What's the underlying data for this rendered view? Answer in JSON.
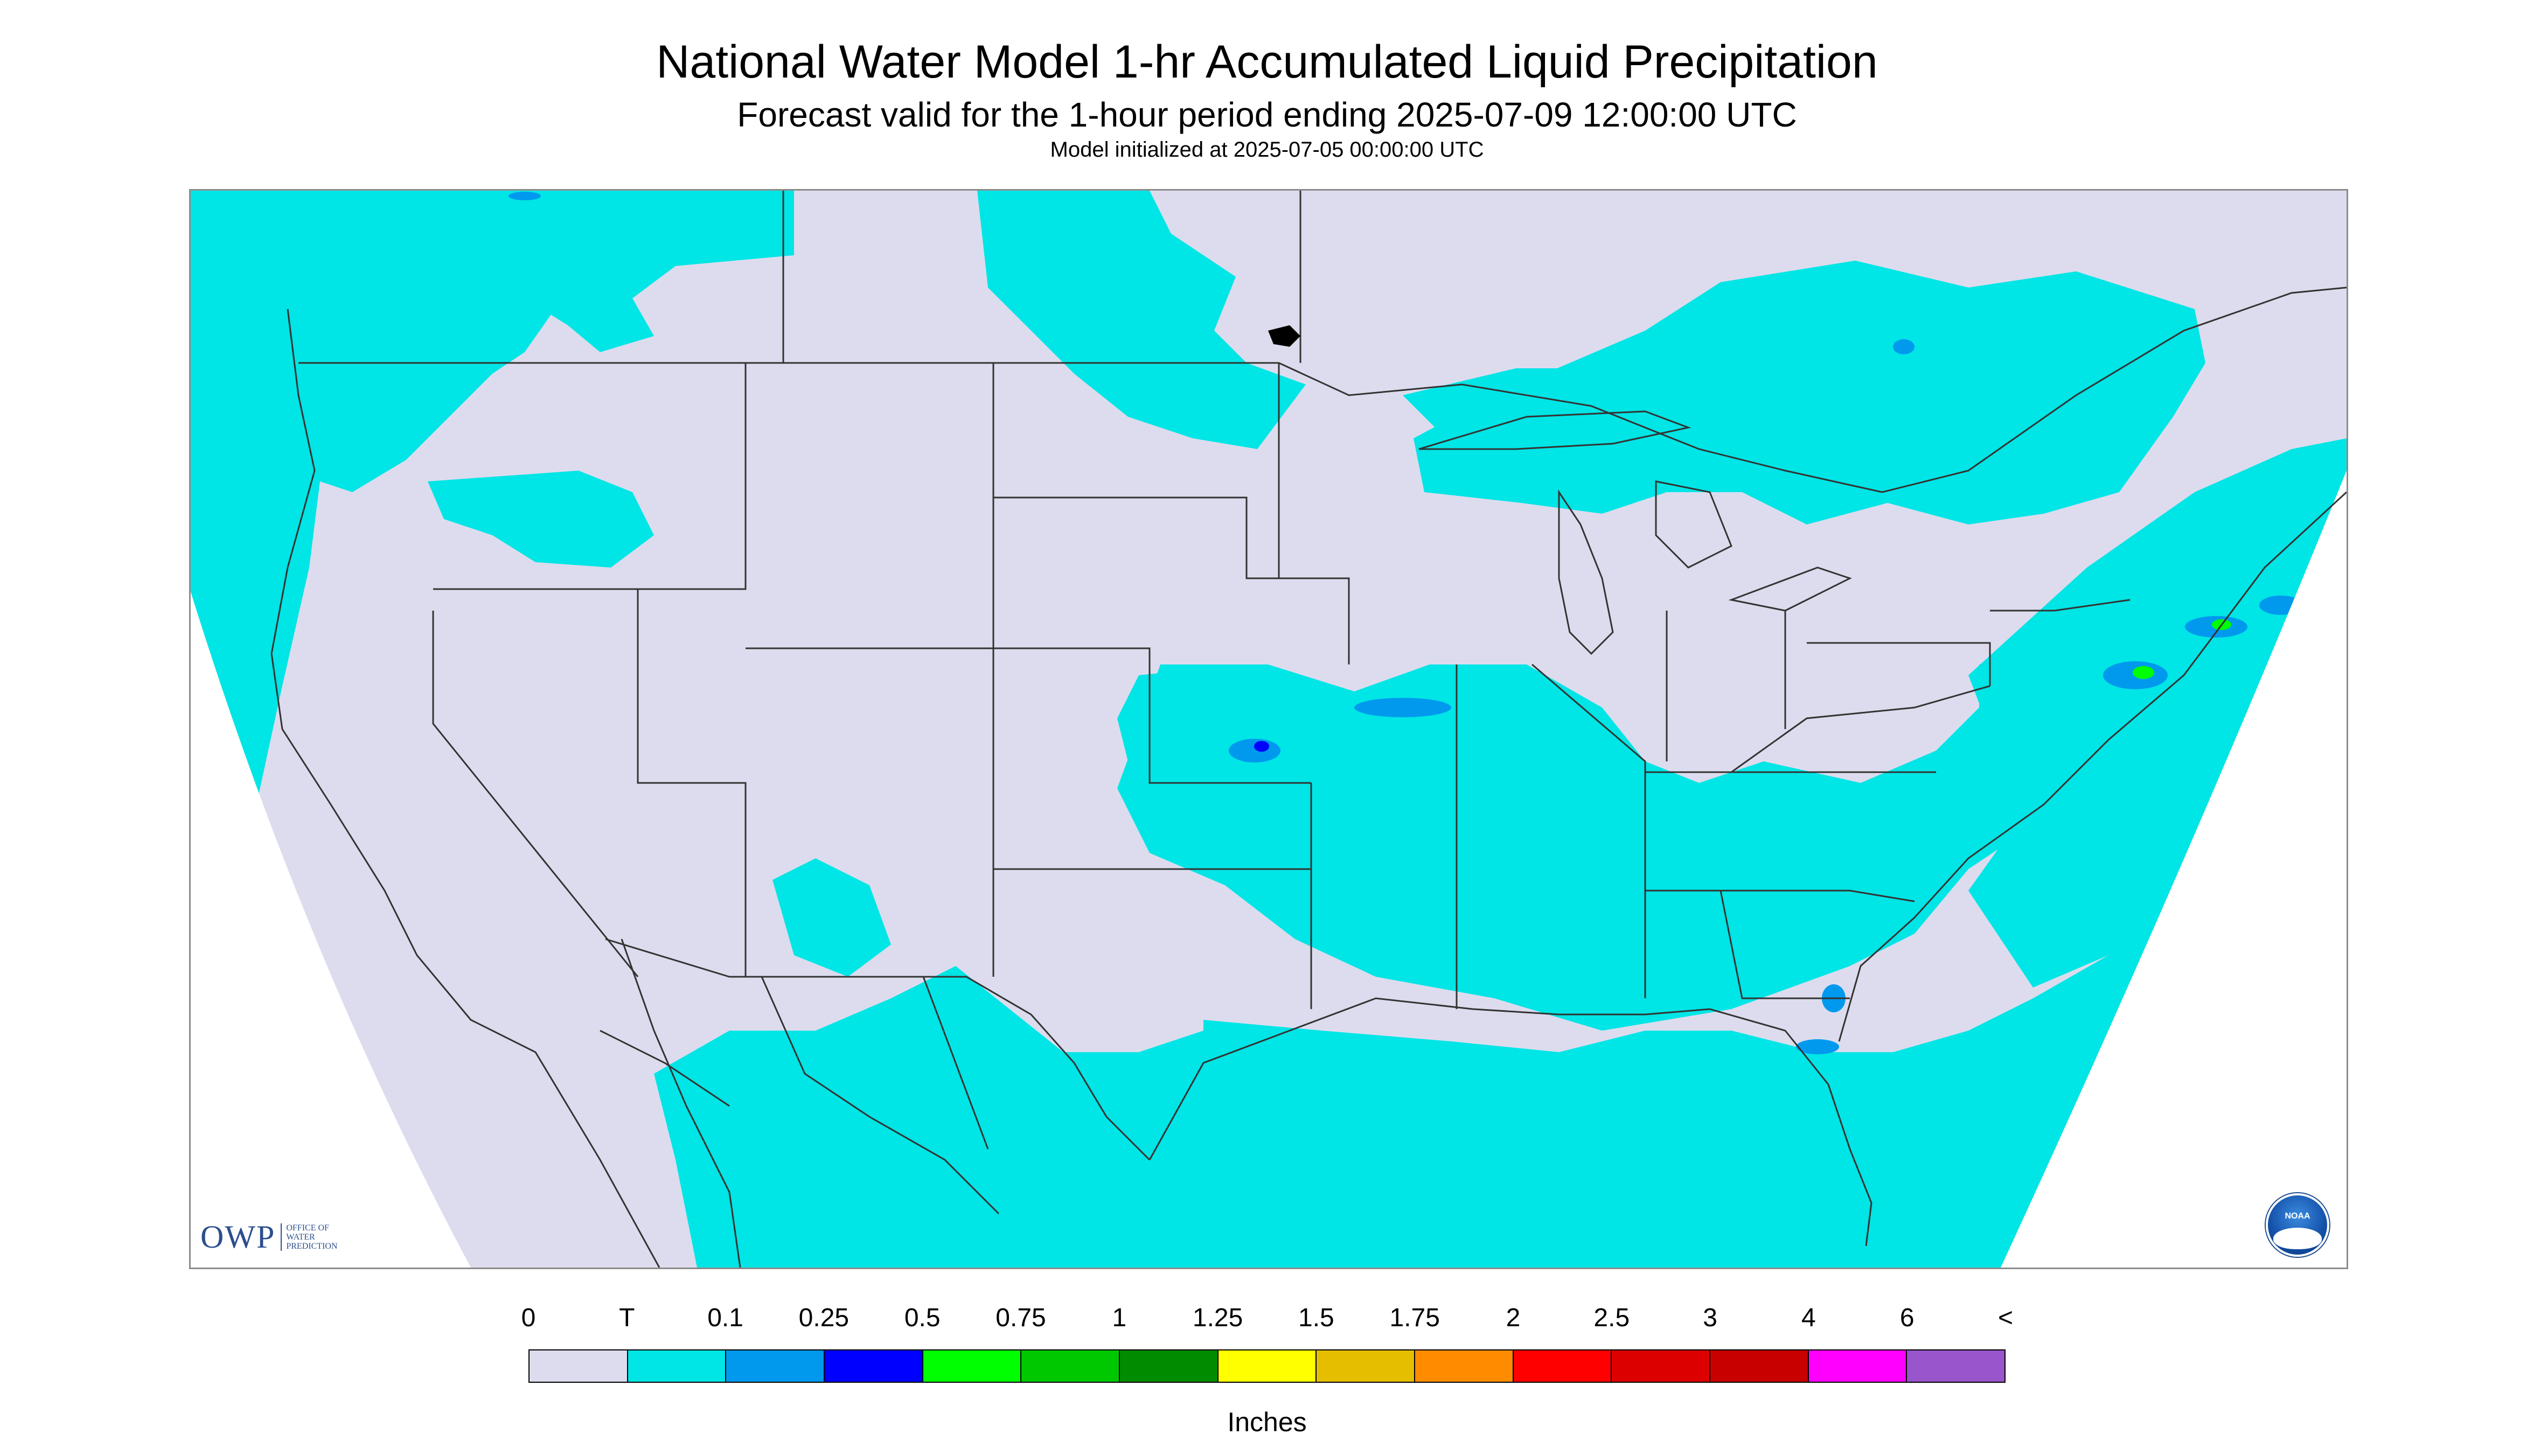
{
  "header": {
    "title": "National Water Model 1-hr Accumulated Liquid Precipitation",
    "subtitle": "Forecast valid for the 1-hour period ending 2025-07-09 12:00:00 UTC",
    "init_line": "Model initialized at 2025-07-05 00:00:00 UTC"
  },
  "map": {
    "region": "CONUS",
    "background_color": "#dcdcee",
    "boundary_color": "#333333",
    "precip_shades": {
      "trace": "#00e5e5",
      "light": "#0099ee",
      "moderate": "#0000ff",
      "heavy": "#00ff00"
    }
  },
  "logos": {
    "owp_main": "OWP",
    "owp_sub_lines": [
      "OFFICE OF",
      "WATER",
      "PREDICTION"
    ],
    "noaa_label": "NOAA"
  },
  "legend": {
    "tick_labels": [
      "0",
      "T",
      "0.1",
      "0.25",
      "0.5",
      "0.75",
      "1",
      "1.25",
      "1.5",
      "1.75",
      "2",
      "2.5",
      "3",
      "4",
      "6",
      "<"
    ],
    "colors": [
      "#dcdcee",
      "#00e5e5",
      "#0099ee",
      "#0000ff",
      "#00ff00",
      "#00c800",
      "#008c00",
      "#ffff00",
      "#e6be00",
      "#ff8c00",
      "#ff0000",
      "#dc0000",
      "#c80000",
      "#ff00ff",
      "#9955cc"
    ],
    "units_label": "Inches"
  }
}
